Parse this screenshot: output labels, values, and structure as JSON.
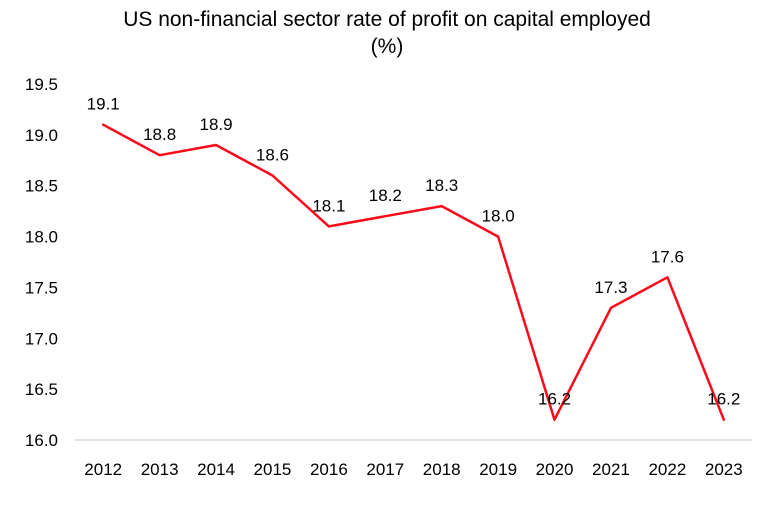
{
  "page": {
    "background": "#ffffff"
  },
  "chart": {
    "title": "US non-financial sector rate of profit on capital employed",
    "subtitle": "(%)"
  },
  "chart_data": {
    "type": "line",
    "title": "US non-financial sector rate of profit on capital employed",
    "subtitle": "(%)",
    "categories": [
      "2012",
      "2013",
      "2014",
      "2015",
      "2016",
      "2017",
      "2018",
      "2019",
      "2020",
      "2021",
      "2022",
      "2023"
    ],
    "values": [
      19.1,
      18.8,
      18.9,
      18.6,
      18.1,
      18.2,
      18.3,
      18.0,
      16.2,
      17.3,
      17.6,
      16.2
    ],
    "data_labels": [
      "19.1",
      "18.8",
      "18.9",
      "18.6",
      "18.1",
      "18.2",
      "18.3",
      "18.0",
      "16.2",
      "17.3",
      "17.6",
      "16.2"
    ],
    "ylim": [
      16.0,
      19.5
    ],
    "ytick_step": 0.5,
    "yticks": [
      "16.0",
      "16.5",
      "17.0",
      "17.5",
      "18.0",
      "18.5",
      "19.0",
      "19.5"
    ],
    "xlabel": "",
    "ylabel": "",
    "grid": false,
    "legend_position": "none",
    "line_color": "#FA0A1A",
    "axis_line_color": "#D9D9D9",
    "text_color": "#000000"
  }
}
